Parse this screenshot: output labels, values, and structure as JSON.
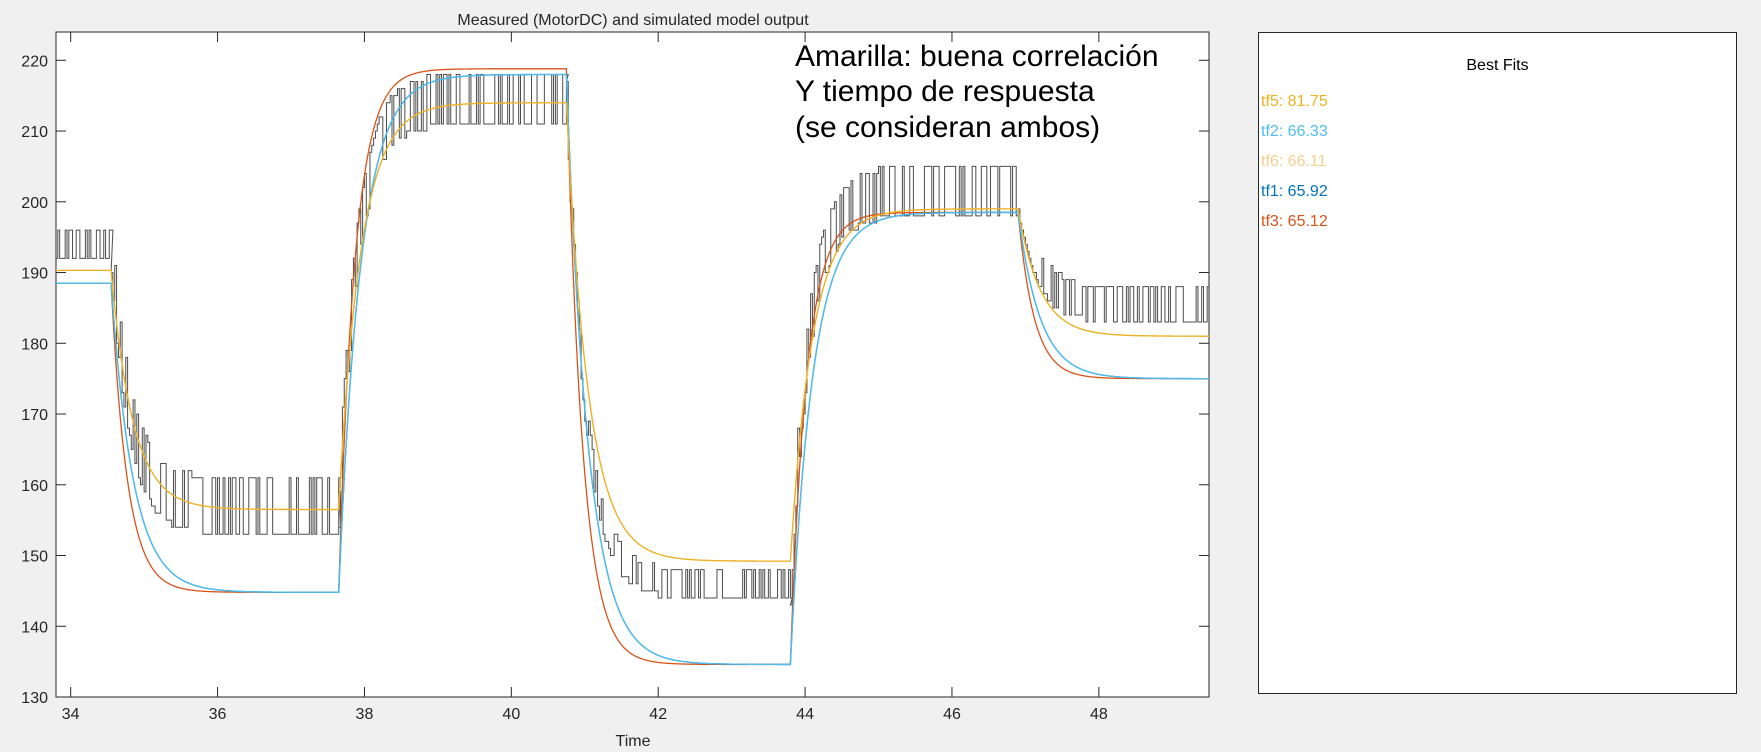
{
  "chart_data": {
    "type": "line",
    "title": "Measured (MotorDC) and simulated model output",
    "xlabel": "Time",
    "ylabel": "",
    "xlim": [
      33.8,
      49.5
    ],
    "ylim": [
      130,
      224
    ],
    "xticks": [
      34,
      36,
      38,
      40,
      42,
      44,
      46,
      48
    ],
    "yticks": [
      130,
      140,
      150,
      160,
      170,
      180,
      190,
      200,
      210,
      220
    ],
    "grid": false,
    "legend": "none",
    "annotation_lines": [
      "Amarilla: buena correlación",
      "Y tiempo de respuesta",
      "(se consideran ambos)"
    ],
    "steps": [
      {
        "t": 34.55,
        "from": 0,
        "to": 1
      },
      {
        "t": 37.65,
        "from": 1,
        "to": 2
      },
      {
        "t": 40.75,
        "from": 2,
        "to": 3
      },
      {
        "t": 43.8,
        "from": 3,
        "to": 4
      },
      {
        "t": 46.9,
        "from": 4,
        "to": 5
      }
    ],
    "measured": {
      "name": "MotorDC",
      "color": "#4d4d4d",
      "levels": [
        {
          "x0": 33.8,
          "x1": 34.55,
          "lo": 192,
          "hi": 196
        },
        {
          "x0": 34.55,
          "x1": 37.65,
          "lo": 153,
          "hi": 161
        },
        {
          "x0": 37.65,
          "x1": 40.75,
          "lo": 211,
          "hi": 218
        },
        {
          "x0": 40.75,
          "x1": 43.8,
          "lo": 144,
          "hi": 148
        },
        {
          "x0": 43.8,
          "x1": 46.9,
          "lo": 198,
          "hi": 205
        },
        {
          "x0": 46.9,
          "x1": 49.5,
          "lo": 183,
          "hi": 188
        }
      ]
    },
    "series": [
      {
        "name": "tf5",
        "color": "#edb120",
        "tau": 0.3,
        "levels": [
          190.3,
          156.5,
          214,
          149.2,
          199,
          181
        ]
      },
      {
        "name": "tf2",
        "color": "#4dbeee",
        "tau": 0.3,
        "levels": [
          188.5,
          144.8,
          218,
          134.6,
          198.5,
          175
        ]
      },
      {
        "name": "tf6",
        "color": "#f5cf8e",
        "tau": 0.3,
        "levels": [
          190.3,
          156.5,
          214,
          149.2,
          199,
          181
        ]
      },
      {
        "name": "tf1",
        "color": "#0072bd",
        "tau": 0.3,
        "levels": [
          188.5,
          144.8,
          218,
          134.6,
          198.5,
          175
        ]
      },
      {
        "name": "tf3",
        "color": "#d95319",
        "tau": 0.22,
        "levels": [
          188.5,
          144.8,
          218.8,
          134.6,
          198.5,
          175
        ]
      }
    ]
  },
  "best_fits": {
    "title": "Best Fits",
    "items": [
      {
        "label": "tf5: 81.75",
        "color": "#edb120"
      },
      {
        "label": "tf2: 66.33",
        "color": "#4dbeee"
      },
      {
        "label": "tf6: 66.11",
        "color": "#f5cf8e"
      },
      {
        "label": "tf1: 65.92",
        "color": "#0072bd"
      },
      {
        "label": "tf3: 65.12",
        "color": "#d95319"
      }
    ]
  }
}
